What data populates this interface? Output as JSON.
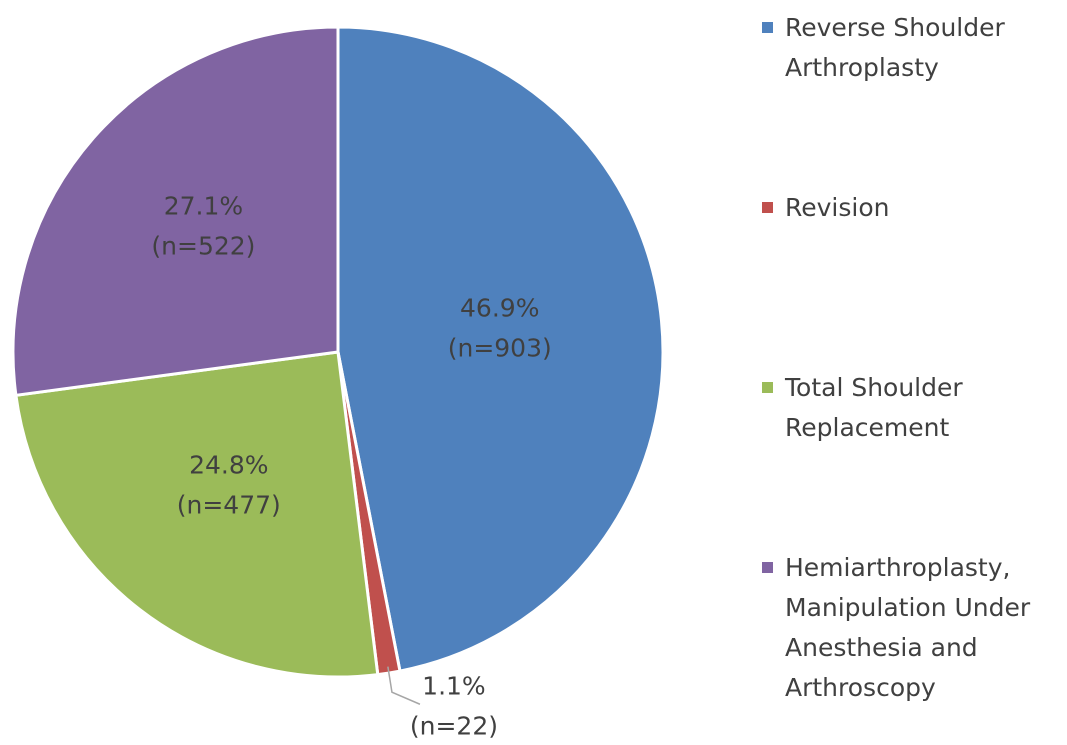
{
  "chart_data": {
    "type": "pie",
    "categories": [
      "Reverse Shoulder Arthroplasty",
      "Revision",
      "Total Shoulder Replacement",
      "Hemiarthroplasty, Manipulation Under Anesthesia and Arthroscopy"
    ],
    "values": [
      46.9,
      1.1,
      24.8,
      27.1
    ],
    "value_labels": [
      "46.9%",
      "1.1%",
      "24.8%",
      "27.1%"
    ],
    "counts": [
      903,
      22,
      477,
      522
    ],
    "count_labels": [
      "(n=903)",
      "(n=22)",
      "(n=477)",
      "(n=522)"
    ],
    "colors": [
      "#4f81bd",
      "#c0504d",
      "#9bbb59",
      "#8064a2"
    ],
    "legend": "right"
  }
}
